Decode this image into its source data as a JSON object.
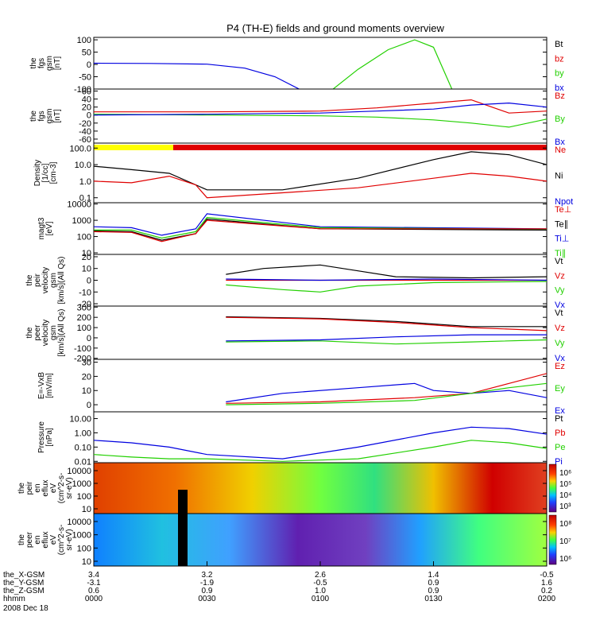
{
  "title": "P4 (TH-E) fields and ground moments overview",
  "colors": {
    "black": "#000000",
    "red": "#e00000",
    "green": "#22d000",
    "blue": "#0000e0",
    "mode_yellow": "#ffff00",
    "mode_red": "#e00000"
  },
  "panels": [
    {
      "id": "fgs-gsm-1",
      "ylabel": [
        "the",
        "fgs",
        "gsm",
        "[nT]"
      ],
      "yticks": [
        "100",
        "50",
        "0",
        "-50",
        "-100"
      ],
      "ylim": [
        -100,
        110
      ],
      "legend": [
        {
          "text": "Bt",
          "color": "#000000"
        },
        {
          "text": "bz",
          "color": "#e00000"
        },
        {
          "text": "by",
          "color": "#22d000"
        },
        {
          "text": "bx",
          "color": "#0000e0"
        }
      ]
    },
    {
      "id": "fgs-gsm-2",
      "ylabel": [
        "the",
        "fgs",
        "gsm",
        "[nT]"
      ],
      "yticks": [
        "60",
        "40",
        "20",
        "0",
        "-20",
        "-40",
        "-60"
      ],
      "ylim": [
        -70,
        65
      ],
      "legend": [
        {
          "text": "Bz",
          "color": "#e00000"
        },
        {
          "text": "By",
          "color": "#22d000"
        },
        {
          "text": "Bx",
          "color": "#0000e0"
        }
      ]
    },
    {
      "id": "density",
      "ylabel": [
        "Density",
        "[1/cc]",
        "[cm-3]"
      ],
      "yticks": [
        "100.0",
        "10.0",
        "1.0",
        "0.1"
      ],
      "ylim": [
        0.05,
        200
      ],
      "log": true,
      "legend": [
        {
          "text": "Ne",
          "color": "#e00000"
        },
        {
          "text": "Ni",
          "color": "#000000"
        },
        {
          "text": "Npot",
          "color": "#0000e0"
        }
      ]
    },
    {
      "id": "temperature",
      "ylabel": [
        "magt3",
        "[eV]"
      ],
      "yticks": [
        "10000",
        "1000",
        "100",
        "10"
      ],
      "ylim": [
        8,
        12000
      ],
      "log": true,
      "legend": [
        {
          "text": "Te⊥",
          "color": "#e00000"
        },
        {
          "text": "Te∥",
          "color": "#000000"
        },
        {
          "text": "Ti⊥",
          "color": "#0000e0"
        },
        {
          "text": "Ti∥",
          "color": "#22d000"
        }
      ]
    },
    {
      "id": "peir-velocity",
      "ylabel": [
        "the",
        "peir",
        "velocity",
        "gsm",
        "[km/s](All Qs)"
      ],
      "yticks": [
        "20",
        "10",
        "0",
        "-10",
        "-20"
      ],
      "ylim": [
        -22,
        22
      ],
      "legend": [
        {
          "text": "Vt",
          "color": "#000000"
        },
        {
          "text": "Vz",
          "color": "#e00000"
        },
        {
          "text": "Vy",
          "color": "#22d000"
        },
        {
          "text": "Vx",
          "color": "#0000e0"
        }
      ]
    },
    {
      "id": "peer-velocity",
      "ylabel": [
        "the",
        "peer",
        "velocity",
        "gsm",
        "[km/s](All Qs)"
      ],
      "yticks": [
        "300",
        "200",
        "100",
        "0",
        "-100",
        "-200"
      ],
      "ylim": [
        -210,
        310
      ],
      "legend": [
        {
          "text": "Vt",
          "color": "#000000"
        },
        {
          "text": "Vz",
          "color": "#e00000"
        },
        {
          "text": "Vy",
          "color": "#22d000"
        },
        {
          "text": "Vx",
          "color": "#0000e0"
        }
      ]
    },
    {
      "id": "efield",
      "ylabel": [
        "E=-VxB",
        "[mV/m]"
      ],
      "yticks": [
        "30",
        "20",
        "10",
        "0"
      ],
      "ylim": [
        -5,
        32
      ],
      "legend": [
        {
          "text": "Ez",
          "color": "#e00000"
        },
        {
          "text": "Ey",
          "color": "#22d000"
        },
        {
          "text": "Ex",
          "color": "#0000e0"
        }
      ]
    },
    {
      "id": "pressure",
      "ylabel": [
        "Pressure",
        "[nPa]"
      ],
      "yticks": [
        "10.00",
        "1.00",
        "0.10",
        "0.01"
      ],
      "ylim": [
        0.008,
        30
      ],
      "log": true,
      "legend": [
        {
          "text": "Pt",
          "color": "#000000"
        },
        {
          "text": "Pb",
          "color": "#e00000"
        },
        {
          "text": "Pe",
          "color": "#22d000"
        },
        {
          "text": "Pi",
          "color": "#0000e0"
        }
      ]
    },
    {
      "id": "peir-spectrogram",
      "ylabel": [
        "the",
        "peir",
        "en",
        "eflux",
        "eV",
        "(cm^2-s-",
        "sr-eV)"
      ],
      "yticks": [
        "10000",
        "1000",
        "100",
        "10"
      ],
      "colorbar": [
        "10⁶",
        "10⁵",
        "10⁴",
        "10³"
      ]
    },
    {
      "id": "peer-spectrogram",
      "ylabel": [
        "the",
        "peer",
        "en",
        "eflux",
        "eV",
        "(cm^2-s-",
        "sr-eV)"
      ],
      "yticks": [
        "10000",
        "1000",
        "100",
        "10"
      ],
      "colorbar": [
        "10⁸",
        "10⁷",
        "10⁶"
      ]
    }
  ],
  "xaxis": {
    "rows": [
      {
        "label": "the_X-GSM",
        "values": [
          "3.4",
          "3.2",
          "2.6",
          "1.4",
          "-0.5"
        ]
      },
      {
        "label": "the_Y-GSM",
        "values": [
          "-3.1",
          "-1.9",
          "-0.5",
          "0.9",
          "1.6"
        ]
      },
      {
        "label": "the_Z-GSM",
        "values": [
          "0.6",
          "0.9",
          "1.0",
          "0.9",
          "0.2"
        ]
      },
      {
        "label": "hhmm",
        "values": [
          "0000",
          "0030",
          "0100",
          "0130",
          "0200"
        ]
      }
    ],
    "date": "2008 Dec 18"
  },
  "chart_data": {
    "type": "line",
    "x_unit": "UT minutes since 2008-12-18 00:00",
    "xlim": [
      0,
      120
    ],
    "fgs_gsm_1": {
      "series": [
        {
          "name": "bx",
          "x": [
            0,
            15,
            30,
            40,
            48,
            55
          ],
          "y": [
            5,
            4,
            1,
            -15,
            -50,
            -105
          ]
        },
        {
          "name": "by",
          "x": [
            63,
            70,
            78,
            85,
            90,
            95
          ],
          "y": [
            -105,
            -20,
            60,
            100,
            70,
            -105
          ]
        }
      ]
    },
    "fgs_gsm_2": {
      "series": [
        {
          "name": "Bz",
          "x": [
            0,
            30,
            60,
            75,
            90,
            100,
            110,
            120
          ],
          "y": [
            8,
            8,
            10,
            18,
            30,
            38,
            5,
            10
          ]
        },
        {
          "name": "By",
          "x": [
            0,
            30,
            60,
            75,
            90,
            100,
            110,
            120
          ],
          "y": [
            2,
            0,
            -2,
            -5,
            -12,
            -20,
            -30,
            -10
          ]
        },
        {
          "name": "Bx",
          "x": [
            0,
            30,
            60,
            75,
            90,
            100,
            110,
            120
          ],
          "y": [
            0,
            2,
            5,
            10,
            15,
            25,
            30,
            20
          ]
        }
      ]
    },
    "density": {
      "series": [
        {
          "name": "Ni",
          "x": [
            0,
            10,
            20,
            27,
            30,
            50,
            70,
            90,
            100,
            110,
            120
          ],
          "y": [
            8,
            5,
            3,
            0.6,
            0.3,
            0.3,
            1.5,
            20,
            60,
            40,
            10
          ]
        },
        {
          "name": "Ne",
          "x": [
            0,
            10,
            20,
            27,
            30,
            50,
            70,
            90,
            100,
            110,
            120
          ],
          "y": [
            1,
            0.8,
            2,
            0.6,
            0.1,
            0.2,
            0.4,
            1.5,
            3,
            2,
            1
          ]
        }
      ]
    },
    "temperature": {
      "series": [
        {
          "name": "Ti⊥",
          "x": [
            0,
            10,
            18,
            27,
            30,
            60,
            120
          ],
          "y": [
            400,
            350,
            120,
            300,
            2500,
            400,
            300
          ]
        },
        {
          "name": "Ti∥",
          "x": [
            0,
            10,
            18,
            27,
            30,
            60,
            120
          ],
          "y": [
            250,
            250,
            80,
            200,
            1500,
            350,
            280
          ]
        },
        {
          "name": "Te∥",
          "x": [
            0,
            10,
            18,
            27,
            30,
            60,
            120
          ],
          "y": [
            220,
            200,
            60,
            150,
            1200,
            300,
            250
          ]
        },
        {
          "name": "Te⊥",
          "x": [
            0,
            10,
            18,
            27,
            30,
            60,
            120
          ],
          "y": [
            200,
            180,
            50,
            150,
            1000,
            300,
            300
          ]
        }
      ]
    },
    "peir_velocity": {
      "series": [
        {
          "name": "Vt",
          "x": [
            35,
            45,
            60,
            70,
            80,
            100,
            120
          ],
          "y": [
            5,
            10,
            13,
            8,
            3,
            2,
            3
          ]
        },
        {
          "name": "Vz",
          "x": [
            35,
            60,
            120
          ],
          "y": [
            0,
            0,
            0
          ]
        },
        {
          "name": "Vy",
          "x": [
            35,
            50,
            60,
            70,
            90,
            120
          ],
          "y": [
            -4,
            -8,
            -10,
            -5,
            -2,
            -1
          ]
        },
        {
          "name": "Vx",
          "x": [
            35,
            60,
            90,
            120
          ],
          "y": [
            1,
            0,
            1,
            0
          ]
        }
      ]
    },
    "peer_velocity": {
      "series": [
        {
          "name": "Vt",
          "x": [
            35,
            60,
            80,
            100,
            120
          ],
          "y": [
            205,
            190,
            160,
            110,
            110
          ]
        },
        {
          "name": "Vz",
          "x": [
            35,
            60,
            80,
            100,
            120
          ],
          "y": [
            200,
            185,
            150,
            100,
            70
          ]
        },
        {
          "name": "Vy",
          "x": [
            35,
            60,
            80,
            100,
            120
          ],
          "y": [
            -40,
            -30,
            -60,
            -40,
            -20
          ]
        },
        {
          "name": "Vx",
          "x": [
            35,
            60,
            80,
            100,
            120
          ],
          "y": [
            -30,
            -20,
            10,
            30,
            30
          ]
        }
      ]
    },
    "efield": {
      "series": [
        {
          "name": "Ex",
          "x": [
            35,
            50,
            70,
            85,
            90,
            100,
            110,
            120
          ],
          "y": [
            2,
            8,
            12,
            15,
            10,
            8,
            10,
            5
          ]
        },
        {
          "name": "Ez",
          "x": [
            35,
            60,
            85,
            100,
            110,
            120
          ],
          "y": [
            1,
            2,
            5,
            8,
            15,
            22
          ]
        },
        {
          "name": "Ey",
          "x": [
            35,
            60,
            85,
            100,
            110,
            120
          ],
          "y": [
            0,
            1,
            3,
            8,
            12,
            15
          ]
        }
      ]
    },
    "pressure": {
      "series": [
        {
          "name": "Pi",
          "x": [
            0,
            10,
            20,
            30,
            50,
            70,
            90,
            100,
            110,
            120
          ],
          "y": [
            0.3,
            0.2,
            0.1,
            0.03,
            0.015,
            0.1,
            1,
            2.5,
            2,
            0.8
          ]
        },
        {
          "name": "Pe",
          "x": [
            0,
            10,
            20,
            30,
            50,
            70,
            90,
            100,
            110,
            120
          ],
          "y": [
            0.03,
            0.02,
            0.015,
            0.015,
            0.01,
            0.015,
            0.1,
            0.3,
            0.2,
            0.08
          ]
        }
      ]
    }
  }
}
